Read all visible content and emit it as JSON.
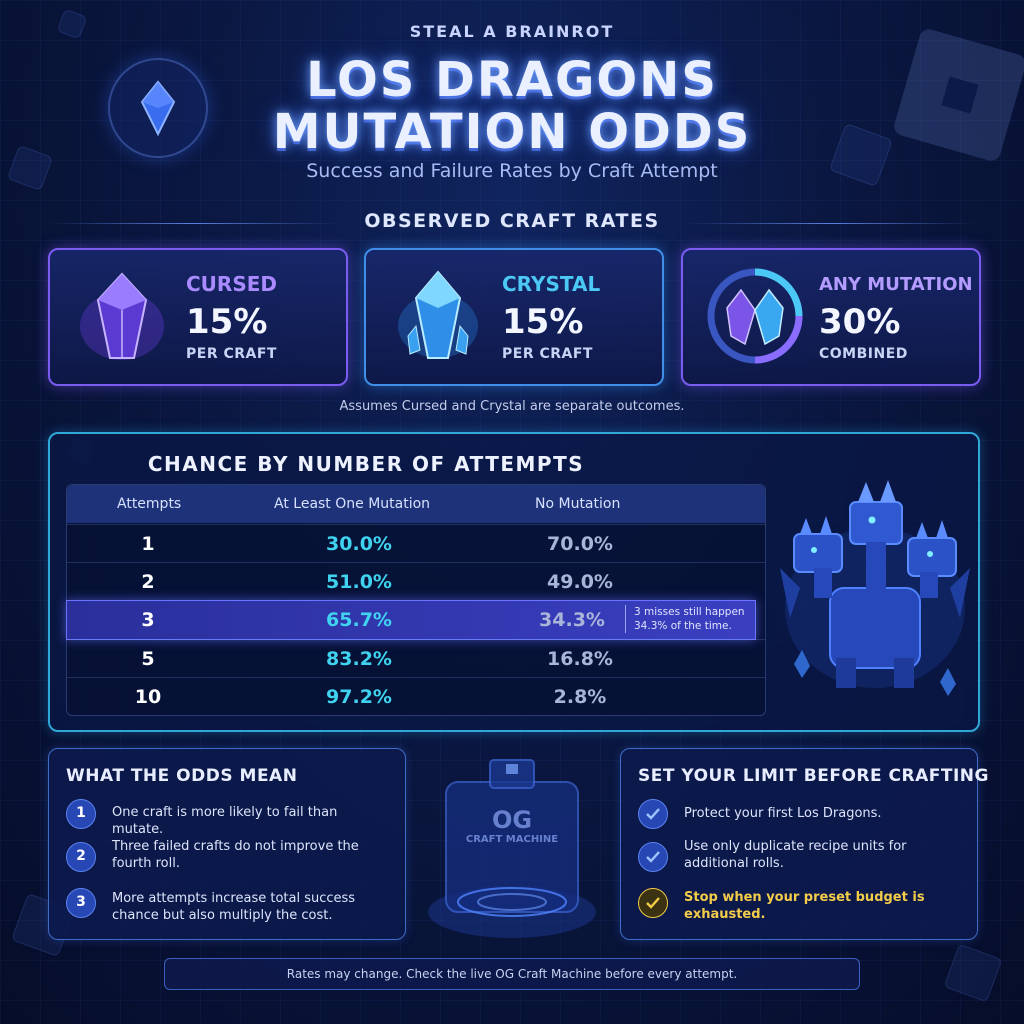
{
  "header": {
    "kicker": "STEAL A BRAINROT",
    "title_line1": "LOS DRAGONS",
    "title_line2": "MUTATION ODDS",
    "subtitle": "Success and Failure Rates by Craft Attempt"
  },
  "rates_section": {
    "title": "OBSERVED CRAFT RATES",
    "cards": [
      {
        "name": "CURSED",
        "percent": "15%",
        "unit": "PER CRAFT",
        "color": "#a98bff",
        "icon": "purple-crystal-icon"
      },
      {
        "name": "CRYSTAL",
        "percent": "15%",
        "unit": "PER CRAFT",
        "color": "#4cc8f5",
        "icon": "blue-crystal-icon"
      },
      {
        "name": "ANY MUTATION",
        "percent": "30%",
        "unit": "COMBINED",
        "color": "#b49cff",
        "icon": "dual-crystal-icon"
      }
    ],
    "note": "Assumes Cursed and Crystal are separate outcomes."
  },
  "attempts_panel": {
    "title": "CHANCE BY NUMBER OF ATTEMPTS",
    "columns": [
      "Attempts",
      "At Least One Mutation",
      "No Mutation"
    ],
    "rows": [
      {
        "attempts": "1",
        "at_least_one": "30.0%",
        "none": "70.0%"
      },
      {
        "attempts": "2",
        "at_least_one": "51.0%",
        "none": "49.0%"
      },
      {
        "attempts": "3",
        "at_least_one": "65.7%",
        "none": "34.3%",
        "note": "3 misses still happen 34.3% of the time."
      },
      {
        "attempts": "5",
        "at_least_one": "83.2%",
        "none": "16.8%"
      },
      {
        "attempts": "10",
        "at_least_one": "97.2%",
        "none": "2.8%"
      }
    ]
  },
  "odds_panel": {
    "title": "WHAT THE ODDS MEAN",
    "items": [
      {
        "num": "1",
        "text": "One craft is more likely to fail than mutate."
      },
      {
        "num": "2",
        "text": "Three failed crafts do not improve the fourth roll."
      },
      {
        "num": "3",
        "text": "More attempts increase total success chance but also multiply the cost."
      }
    ]
  },
  "machine": {
    "line1": "OG",
    "line2": "CRAFT MACHINE"
  },
  "limit_panel": {
    "title": "SET YOUR LIMIT BEFORE CRAFTING",
    "items": [
      {
        "text": "Protect your first Los Dragons."
      },
      {
        "text": "Use only duplicate recipe units for additional rolls."
      },
      {
        "text": "Stop when your preset budget is exhausted.",
        "highlight": "#f3cc4a"
      }
    ]
  },
  "footer": "Rates may change. Check the live OG Craft Machine before every attempt."
}
